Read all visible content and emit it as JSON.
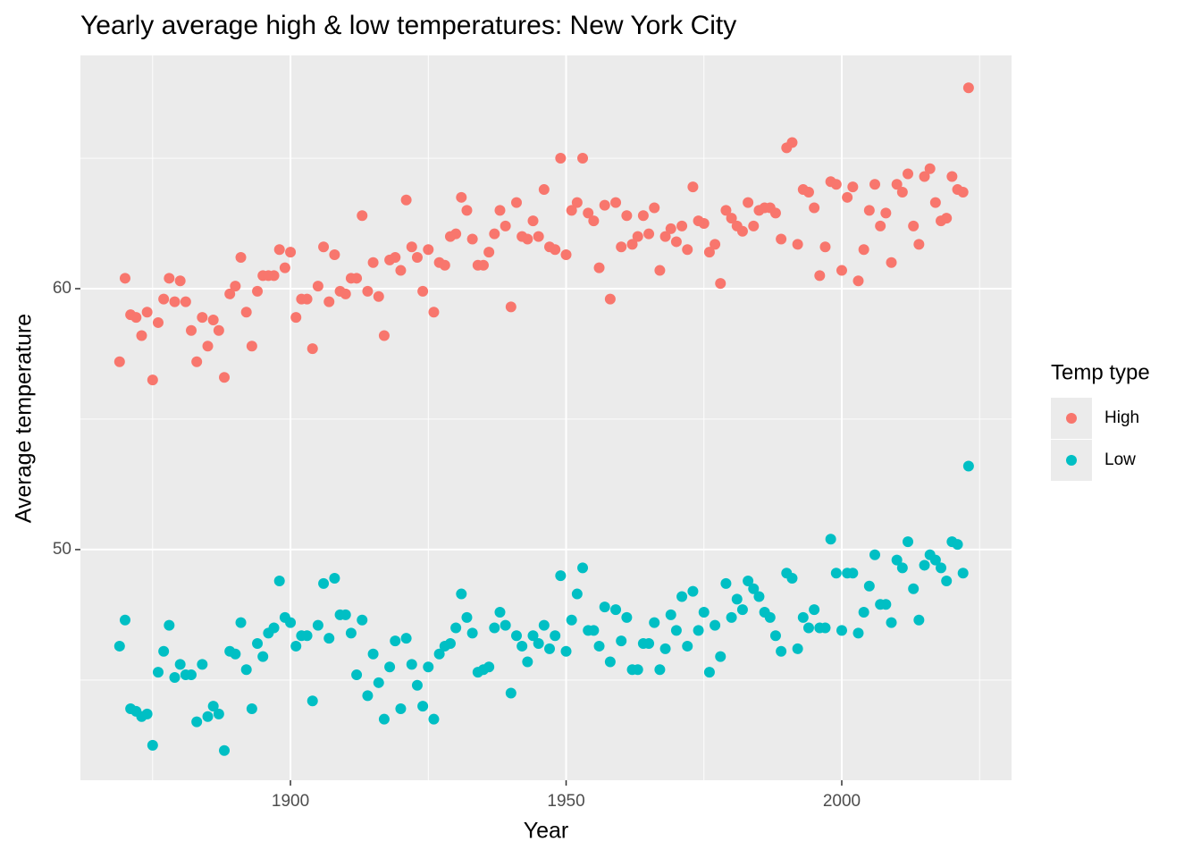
{
  "chart_data": {
    "type": "scatter",
    "title": "Yearly average high & low temperatures: New York City",
    "x_label": "Year",
    "y_label": "Average temperature",
    "legend_title": "Temp type",
    "legend_position": "right",
    "x": [
      1869,
      1870,
      1871,
      1872,
      1873,
      1874,
      1875,
      1876,
      1877,
      1878,
      1879,
      1880,
      1881,
      1882,
      1883,
      1884,
      1885,
      1886,
      1887,
      1888,
      1889,
      1890,
      1891,
      1892,
      1893,
      1894,
      1895,
      1896,
      1897,
      1898,
      1899,
      1900,
      1901,
      1902,
      1903,
      1904,
      1905,
      1906,
      1907,
      1908,
      1909,
      1910,
      1911,
      1912,
      1913,
      1914,
      1915,
      1916,
      1917,
      1918,
      1919,
      1920,
      1921,
      1922,
      1923,
      1924,
      1925,
      1926,
      1927,
      1928,
      1929,
      1930,
      1931,
      1932,
      1933,
      1934,
      1935,
      1936,
      1937,
      1938,
      1939,
      1940,
      1941,
      1942,
      1943,
      1944,
      1945,
      1946,
      1947,
      1948,
      1949,
      1950,
      1951,
      1952,
      1953,
      1954,
      1955,
      1956,
      1957,
      1958,
      1959,
      1960,
      1961,
      1962,
      1963,
      1964,
      1965,
      1966,
      1967,
      1968,
      1969,
      1970,
      1971,
      1972,
      1973,
      1974,
      1975,
      1976,
      1977,
      1978,
      1979,
      1980,
      1981,
      1982,
      1983,
      1984,
      1985,
      1986,
      1987,
      1988,
      1989,
      1990,
      1991,
      1992,
      1993,
      1994,
      1995,
      1996,
      1997,
      1998,
      1999,
      2000,
      2001,
      2002,
      2003,
      2004,
      2005,
      2006,
      2007,
      2008,
      2009,
      2010,
      2011,
      2012,
      2013,
      2014,
      2015,
      2016,
      2017,
      2018,
      2019,
      2020,
      2021,
      2022,
      2023
    ],
    "series": [
      {
        "name": "High",
        "color": "#F8766D",
        "values": [
          57.2,
          60.4,
          59.0,
          58.9,
          58.2,
          59.1,
          56.5,
          58.7,
          59.6,
          60.4,
          59.5,
          60.3,
          59.5,
          58.4,
          57.2,
          58.9,
          57.8,
          58.8,
          58.4,
          56.6,
          59.8,
          60.1,
          61.2,
          59.1,
          57.8,
          59.9,
          60.5,
          60.5,
          60.5,
          61.5,
          60.8,
          61.4,
          58.9,
          59.6,
          59.6,
          57.7,
          60.1,
          61.6,
          59.5,
          61.3,
          59.9,
          59.8,
          60.4,
          60.4,
          62.8,
          59.9,
          61.0,
          59.7,
          58.2,
          61.1,
          61.2,
          60.7,
          63.4,
          61.6,
          61.2,
          59.9,
          61.5,
          59.1,
          61.0,
          60.9,
          62.0,
          62.1,
          63.5,
          63.0,
          61.9,
          60.9,
          60.9,
          61.4,
          62.1,
          63.0,
          62.4,
          59.3,
          63.3,
          62.0,
          61.9,
          62.6,
          62.0,
          63.8,
          61.6,
          61.5,
          65.0,
          61.3,
          63.0,
          63.3,
          65.0,
          62.9,
          62.6,
          60.8,
          63.2,
          59.6,
          63.3,
          61.6,
          62.8,
          61.7,
          62.0,
          62.8,
          62.1,
          63.1,
          60.7,
          62.0,
          62.3,
          61.8,
          62.4,
          61.5,
          63.9,
          62.6,
          62.5,
          61.4,
          61.7,
          60.2,
          63.0,
          62.7,
          62.4,
          62.2,
          63.3,
          62.4,
          63.0,
          63.1,
          63.1,
          62.9,
          61.9,
          65.4,
          65.6,
          61.7,
          63.8,
          63.7,
          63.1,
          60.5,
          61.6,
          64.1,
          64.0,
          60.7,
          63.5,
          63.9,
          60.3,
          61.5,
          63.0,
          64.0,
          62.4,
          62.9,
          61.0,
          64.0,
          63.7,
          64.4,
          62.4,
          61.7,
          64.3,
          64.6,
          63.3,
          62.6,
          62.7,
          64.3,
          63.8,
          63.7,
          67.7
        ]
      },
      {
        "name": "Low",
        "color": "#00BFC4",
        "values": [
          46.3,
          47.3,
          43.9,
          43.8,
          43.6,
          43.7,
          42.5,
          45.3,
          46.1,
          47.1,
          45.1,
          45.6,
          45.2,
          45.2,
          43.4,
          45.6,
          43.6,
          44.0,
          43.7,
          42.3,
          46.1,
          46.0,
          47.2,
          45.4,
          43.9,
          46.4,
          45.9,
          46.8,
          47.0,
          48.8,
          47.4,
          47.2,
          46.3,
          46.7,
          46.7,
          44.2,
          47.1,
          48.7,
          46.6,
          48.9,
          47.5,
          47.5,
          46.8,
          45.2,
          47.3,
          44.4,
          46.0,
          44.9,
          43.5,
          45.5,
          46.5,
          43.9,
          46.6,
          45.6,
          44.8,
          44.0,
          45.5,
          43.5,
          46.0,
          46.3,
          46.4,
          47.0,
          48.3,
          47.4,
          46.8,
          45.3,
          45.4,
          45.5,
          47.0,
          47.6,
          47.1,
          44.5,
          46.7,
          46.3,
          45.7,
          46.7,
          46.4,
          47.1,
          46.2,
          46.7,
          49.0,
          46.1,
          47.3,
          48.3,
          49.3,
          46.9,
          46.9,
          46.3,
          47.8,
          45.7,
          47.7,
          46.5,
          47.4,
          45.4,
          45.4,
          46.4,
          46.4,
          47.2,
          45.4,
          46.2,
          47.5,
          46.9,
          48.2,
          46.3,
          48.4,
          46.9,
          47.6,
          45.3,
          47.1,
          45.9,
          48.7,
          47.4,
          48.1,
          47.7,
          48.8,
          48.5,
          48.2,
          47.6,
          47.4,
          46.7,
          46.1,
          49.1,
          48.9,
          46.2,
          47.4,
          47.0,
          47.7,
          47.0,
          47.0,
          50.4,
          49.1,
          46.9,
          49.1,
          49.1,
          46.8,
          47.6,
          48.6,
          49.8,
          47.9,
          47.9,
          47.2,
          49.6,
          49.3,
          50.3,
          48.5,
          47.3,
          49.4,
          49.8,
          49.6,
          49.3,
          48.8,
          50.3,
          50.2,
          49.1,
          53.2
        ]
      }
    ],
    "xlim": [
      1861.9,
      2030.8
    ],
    "xticks": [
      1900,
      1950,
      2000
    ],
    "x_minor_ticks": [
      1875,
      1925,
      1975,
      2025
    ],
    "ylim": [
      41.16,
      68.94
    ],
    "yticks": [
      50,
      60
    ],
    "y_minor_ticks": [
      45,
      55,
      65
    ],
    "grid": true
  }
}
